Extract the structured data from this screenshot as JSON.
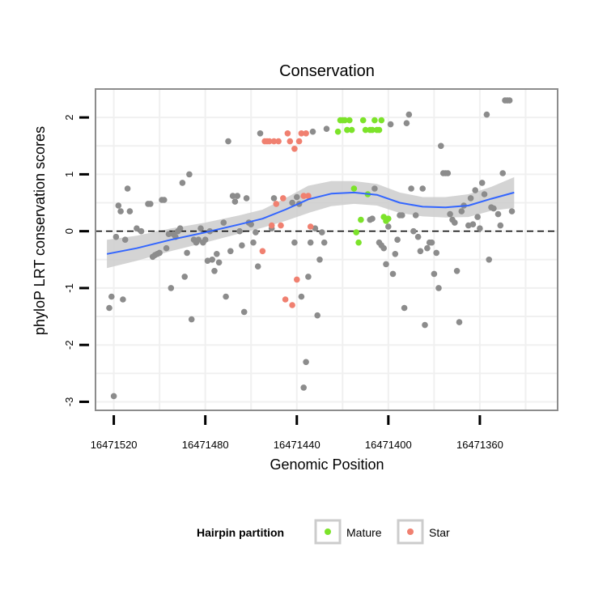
{
  "chart_data": {
    "type": "scatter",
    "title": "Conservation",
    "xlabel": "Genomic Position",
    "ylabel": "phyloP LRT conservation scores",
    "x_reversed": true,
    "xlim": [
      16471528,
      16471326
    ],
    "ylim": [
      -3.15,
      2.5
    ],
    "x_ticks": [
      16471520,
      16471480,
      16471440,
      16471400,
      16471360
    ],
    "x_tick_labels": [
      "16471520",
      "16471480",
      "16471440",
      "16471400",
      "16471360"
    ],
    "y_ticks": [
      2,
      1,
      0,
      -1,
      -2,
      -3
    ],
    "y_tick_labels": [
      "2",
      "1",
      "0",
      "-1",
      "-2",
      "-3"
    ],
    "reference_line": {
      "y": 0,
      "style": "dashed"
    },
    "legend": {
      "title": "Hairpin partition",
      "position": "bottom",
      "entries": [
        {
          "label": "Mature",
          "color": "#7CE32A"
        },
        {
          "label": "Star",
          "color": "#F08070"
        }
      ]
    },
    "colors": {
      "other": "#8c8c8c",
      "Mature": "#7CE32A",
      "Star": "#F08070",
      "smooth": "#3366FF",
      "band": "#cccccc",
      "panel": "#ffffff",
      "grid": "#f0f0f0",
      "frame": "#8c8c8c"
    },
    "series": [
      {
        "name": "Other",
        "points": [
          [
            16471522,
            -1.35
          ],
          [
            16471521,
            -1.15
          ],
          [
            16471520,
            -2.9
          ],
          [
            16471519,
            -0.1
          ],
          [
            16471518,
            0.45
          ],
          [
            16471517,
            0.35
          ],
          [
            16471516,
            -1.2
          ],
          [
            16471515,
            -0.15
          ],
          [
            16471514,
            0.75
          ],
          [
            16471513,
            0.35
          ],
          [
            16471510,
            0.05
          ],
          [
            16471508,
            0.0
          ],
          [
            16471505,
            0.48
          ],
          [
            16471504,
            0.48
          ],
          [
            16471503,
            -0.45
          ],
          [
            16471502,
            -0.42
          ],
          [
            16471501,
            -0.4
          ],
          [
            16471500,
            -0.38
          ],
          [
            16471499,
            0.55
          ],
          [
            16471498,
            0.55
          ],
          [
            16471497,
            -0.3
          ],
          [
            16471496,
            -0.05
          ],
          [
            16471495,
            -1.0
          ],
          [
            16471494,
            -0.05
          ],
          [
            16471493,
            -0.1
          ],
          [
            16471492,
            0.0
          ],
          [
            16471491,
            0.05
          ],
          [
            16471490,
            0.85
          ],
          [
            16471489,
            -0.8
          ],
          [
            16471488,
            -0.38
          ],
          [
            16471487,
            1.0
          ],
          [
            16471486,
            -1.55
          ],
          [
            16471485,
            -0.15
          ],
          [
            16471484,
            -0.2
          ],
          [
            16471483,
            -0.15
          ],
          [
            16471482,
            0.05
          ],
          [
            16471481,
            -0.2
          ],
          [
            16471480,
            -0.15
          ],
          [
            16471479,
            -0.52
          ],
          [
            16471478,
            0.0
          ],
          [
            16471477,
            -0.5
          ],
          [
            16471476,
            -0.7
          ],
          [
            16471475,
            -0.4
          ],
          [
            16471474,
            -0.55
          ],
          [
            16471472,
            0.15
          ],
          [
            16471471,
            -1.15
          ],
          [
            16471470,
            1.58
          ],
          [
            16471469,
            -0.35
          ],
          [
            16471468,
            0.62
          ],
          [
            16471467,
            0.52
          ],
          [
            16471466,
            0.62
          ],
          [
            16471465,
            0.0
          ],
          [
            16471464,
            -0.25
          ],
          [
            16471463,
            -1.42
          ],
          [
            16471462,
            0.58
          ],
          [
            16471461,
            0.15
          ],
          [
            16471460,
            0.12
          ],
          [
            16471459,
            -0.2
          ],
          [
            16471458,
            -0.02
          ],
          [
            16471457,
            -0.62
          ],
          [
            16471456,
            1.72
          ],
          [
            16471451,
            0.05
          ],
          [
            16471450,
            0.58
          ],
          [
            16471442,
            0.5
          ],
          [
            16471441,
            -0.2
          ],
          [
            16471440,
            0.6
          ],
          [
            16471439,
            0.48
          ],
          [
            16471438,
            -1.15
          ],
          [
            16471437,
            -2.75
          ],
          [
            16471436,
            -2.3
          ],
          [
            16471435,
            -0.8
          ],
          [
            16471434,
            -0.2
          ],
          [
            16471433,
            1.75
          ],
          [
            16471432,
            0.05
          ],
          [
            16471431,
            -1.48
          ],
          [
            16471430,
            -0.5
          ],
          [
            16471429,
            -0.02
          ],
          [
            16471428,
            -0.2
          ],
          [
            16471427,
            1.8
          ],
          [
            16471408,
            0.2
          ],
          [
            16471407,
            0.22
          ],
          [
            16471406,
            0.75
          ],
          [
            16471404,
            -0.2
          ],
          [
            16471403,
            -0.25
          ],
          [
            16471402,
            -0.3
          ],
          [
            16471401,
            -0.58
          ],
          [
            16471400,
            0.08
          ],
          [
            16471399,
            1.88
          ],
          [
            16471398,
            -0.75
          ],
          [
            16471397,
            -0.4
          ],
          [
            16471396,
            -0.15
          ],
          [
            16471395,
            0.28
          ],
          [
            16471394,
            0.28
          ],
          [
            16471393,
            -1.35
          ],
          [
            16471392,
            1.9
          ],
          [
            16471391,
            2.05
          ],
          [
            16471390,
            0.75
          ],
          [
            16471389,
            0.0
          ],
          [
            16471388,
            0.28
          ],
          [
            16471387,
            -0.1
          ],
          [
            16471386,
            -0.35
          ],
          [
            16471385,
            0.75
          ],
          [
            16471384,
            -1.65
          ],
          [
            16471383,
            -0.3
          ],
          [
            16471382,
            -0.2
          ],
          [
            16471381,
            -0.2
          ],
          [
            16471380,
            -0.75
          ],
          [
            16471379,
            -0.38
          ],
          [
            16471378,
            -1.0
          ],
          [
            16471377,
            1.5
          ],
          [
            16471376,
            1.02
          ],
          [
            16471375,
            1.02
          ],
          [
            16471374,
            1.02
          ],
          [
            16471373,
            0.3
          ],
          [
            16471372,
            0.2
          ],
          [
            16471371,
            0.15
          ],
          [
            16471370,
            -0.7
          ],
          [
            16471369,
            -1.6
          ],
          [
            16471368,
            0.35
          ],
          [
            16471367,
            0.45
          ],
          [
            16471365,
            0.1
          ],
          [
            16471364,
            0.58
          ],
          [
            16471363,
            0.12
          ],
          [
            16471362,
            0.72
          ],
          [
            16471361,
            0.25
          ],
          [
            16471360,
            0.05
          ],
          [
            16471359,
            0.85
          ],
          [
            16471358,
            0.65
          ],
          [
            16471357,
            2.05
          ],
          [
            16471356,
            -0.5
          ],
          [
            16471355,
            0.42
          ],
          [
            16471354,
            0.4
          ],
          [
            16471352,
            0.3
          ],
          [
            16471351,
            0.1
          ],
          [
            16471350,
            1.02
          ],
          [
            16471349,
            2.3
          ],
          [
            16471348,
            2.3
          ],
          [
            16471347,
            2.3
          ],
          [
            16471346,
            0.35
          ]
        ]
      },
      {
        "name": "Mature",
        "points": [
          [
            16471422,
            1.75
          ],
          [
            16471421,
            1.95
          ],
          [
            16471420,
            1.95
          ],
          [
            16471419,
            1.95
          ],
          [
            16471418,
            1.78
          ],
          [
            16471417,
            1.95
          ],
          [
            16471416,
            1.78
          ],
          [
            16471415,
            0.75
          ],
          [
            16471414,
            -0.02
          ],
          [
            16471413,
            -0.2
          ],
          [
            16471412,
            0.2
          ],
          [
            16471411,
            1.95
          ],
          [
            16471410,
            1.78
          ],
          [
            16471409,
            0.65
          ],
          [
            16471408,
            1.78
          ],
          [
            16471407,
            1.78
          ],
          [
            16471406,
            1.95
          ],
          [
            16471405,
            1.78
          ],
          [
            16471404,
            1.78
          ],
          [
            16471403,
            1.95
          ],
          [
            16471402,
            0.25
          ],
          [
            16471401,
            0.18
          ],
          [
            16471400,
            0.22
          ]
        ]
      },
      {
        "name": "Star",
        "points": [
          [
            16471455,
            -0.35
          ],
          [
            16471454,
            1.58
          ],
          [
            16471453,
            1.58
          ],
          [
            16471452,
            1.58
          ],
          [
            16471451,
            0.1
          ],
          [
            16471450,
            1.58
          ],
          [
            16471449,
            0.48
          ],
          [
            16471448,
            1.58
          ],
          [
            16471447,
            0.1
          ],
          [
            16471446,
            0.58
          ],
          [
            16471445,
            -1.2
          ],
          [
            16471444,
            1.72
          ],
          [
            16471443,
            1.58
          ],
          [
            16471442,
            -1.3
          ],
          [
            16471441,
            1.45
          ],
          [
            16471440,
            -0.85
          ],
          [
            16471439,
            1.58
          ],
          [
            16471438,
            1.72
          ],
          [
            16471437,
            0.62
          ],
          [
            16471436,
            1.72
          ],
          [
            16471435,
            0.62
          ],
          [
            16471434,
            0.08
          ]
        ]
      }
    ],
    "smooth_curve": [
      [
        16471523,
        -0.4
      ],
      [
        16471510,
        -0.3
      ],
      [
        16471495,
        -0.15
      ],
      [
        16471480,
        -0.02
      ],
      [
        16471465,
        0.12
      ],
      [
        16471455,
        0.22
      ],
      [
        16471445,
        0.38
      ],
      [
        16471435,
        0.56
      ],
      [
        16471425,
        0.66
      ],
      [
        16471415,
        0.68
      ],
      [
        16471405,
        0.64
      ],
      [
        16471395,
        0.5
      ],
      [
        16471385,
        0.43
      ],
      [
        16471375,
        0.42
      ],
      [
        16471365,
        0.45
      ],
      [
        16471355,
        0.57
      ],
      [
        16471345,
        0.68
      ]
    ],
    "confidence_band": {
      "upper": [
        [
          16471523,
          -0.15
        ],
        [
          16471510,
          -0.08
        ],
        [
          16471495,
          0.05
        ],
        [
          16471480,
          0.15
        ],
        [
          16471465,
          0.28
        ],
        [
          16471455,
          0.38
        ],
        [
          16471445,
          0.58
        ],
        [
          16471435,
          0.8
        ],
        [
          16471425,
          0.88
        ],
        [
          16471415,
          0.88
        ],
        [
          16471405,
          0.83
        ],
        [
          16471395,
          0.68
        ],
        [
          16471385,
          0.6
        ],
        [
          16471375,
          0.6
        ],
        [
          16471365,
          0.65
        ],
        [
          16471355,
          0.78
        ],
        [
          16471345,
          0.95
        ]
      ],
      "lower": [
        [
          16471523,
          -0.65
        ],
        [
          16471510,
          -0.52
        ],
        [
          16471495,
          -0.35
        ],
        [
          16471480,
          -0.2
        ],
        [
          16471465,
          -0.04
        ],
        [
          16471455,
          0.06
        ],
        [
          16471445,
          0.18
        ],
        [
          16471435,
          0.32
        ],
        [
          16471425,
          0.44
        ],
        [
          16471415,
          0.48
        ],
        [
          16471405,
          0.45
        ],
        [
          16471395,
          0.32
        ],
        [
          16471385,
          0.26
        ],
        [
          16471375,
          0.24
        ],
        [
          16471365,
          0.25
        ],
        [
          16471355,
          0.36
        ],
        [
          16471345,
          0.41
        ]
      ]
    }
  }
}
